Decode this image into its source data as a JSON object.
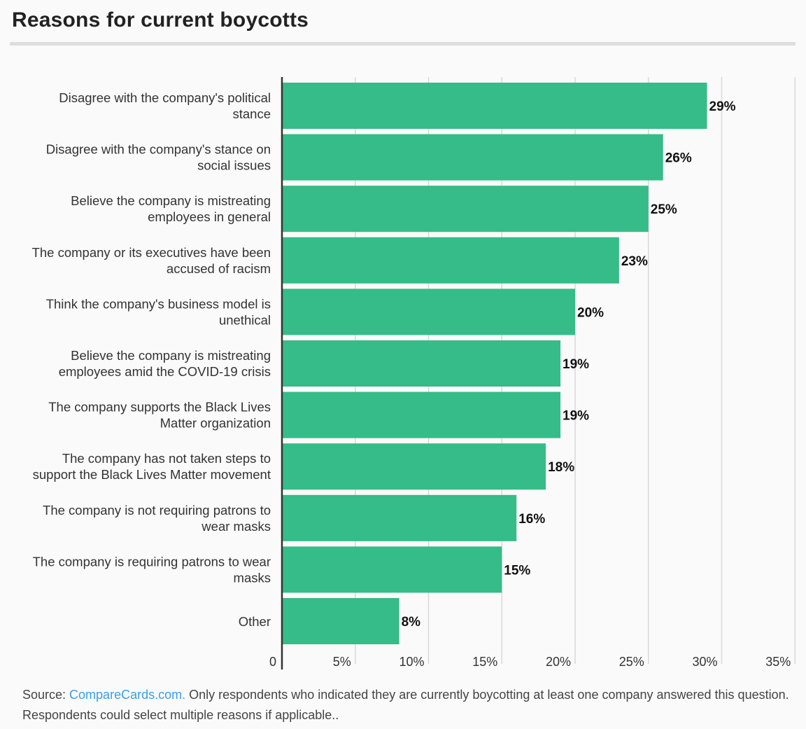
{
  "title": "Reasons for current boycotts",
  "colors": {
    "bar": "#35bc88",
    "grid": "#d8d8d8",
    "axis": "#333333",
    "link": "#3a9ee8"
  },
  "chart_data": {
    "type": "bar",
    "orientation": "horizontal",
    "title": "Reasons for current boycotts",
    "xlim": [
      0,
      35
    ],
    "grid": true,
    "categories": [
      [
        "Disagree with the company's political",
        "stance"
      ],
      [
        "Disagree with the company's stance on",
        "social issues"
      ],
      [
        "Believe the company is mistreating",
        "employees in general"
      ],
      [
        "The company or its executives have been",
        "accused of racism"
      ],
      [
        "Think the company's business model is",
        "unethical"
      ],
      [
        "Believe the company is mistreating",
        "employees amid the COVID-19 crisis"
      ],
      [
        "The company supports the Black Lives",
        "Matter organization"
      ],
      [
        "The company has not taken steps to",
        "support the Black Lives Matter movement"
      ],
      [
        "The company is not requiring patrons to",
        "wear masks"
      ],
      [
        "The company is requiring patrons to wear",
        "masks"
      ],
      [
        "Other"
      ]
    ],
    "values": [
      29,
      26,
      25,
      23,
      20,
      19,
      19,
      18,
      16,
      15,
      8
    ],
    "value_labels": [
      "29%",
      "26%",
      "25%",
      "23%",
      "20%",
      "19%",
      "19%",
      "18%",
      "16%",
      "15%",
      "8%"
    ],
    "x_ticks": [
      0,
      5,
      10,
      15,
      20,
      25,
      30,
      35
    ],
    "x_tick_labels": [
      "0",
      "5%",
      "10%",
      "15%",
      "20%",
      "25%",
      "30%",
      "35%"
    ]
  },
  "footer": {
    "prefix": "Source: ",
    "link_text": "CompareCards.com.",
    "text": " Only respondents who indicated they are currently boycotting at least one company answered this question. Respondents could select multiple reasons if applicable.."
  }
}
